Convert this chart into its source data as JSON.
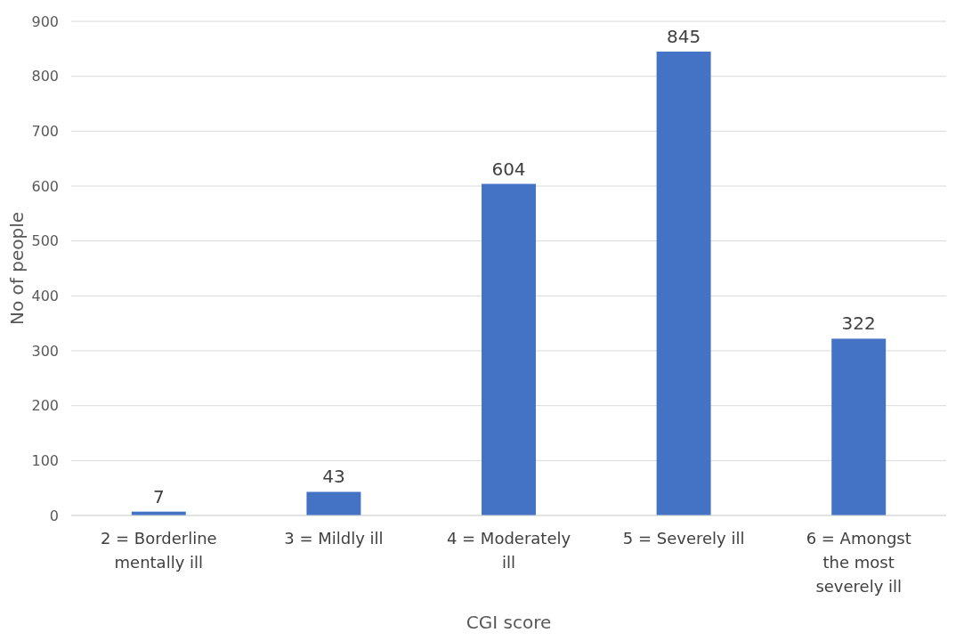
{
  "chart_data": {
    "type": "bar",
    "xlabel": "CGI score",
    "ylabel": "No of people",
    "categories": [
      "2 = Borderline mentally ill",
      "3 = Mildly ill",
      "4 = Moderately ill",
      "5 = Severely ill",
      "6 = Amongst the most severely ill"
    ],
    "values": [
      7,
      43,
      604,
      845,
      322
    ],
    "color": "#4472c4",
    "ylim": [
      0,
      900
    ],
    "yticks": [
      0,
      100,
      200,
      300,
      400,
      500,
      600,
      700,
      800,
      900
    ],
    "grid": "y",
    "data_labels": true
  }
}
